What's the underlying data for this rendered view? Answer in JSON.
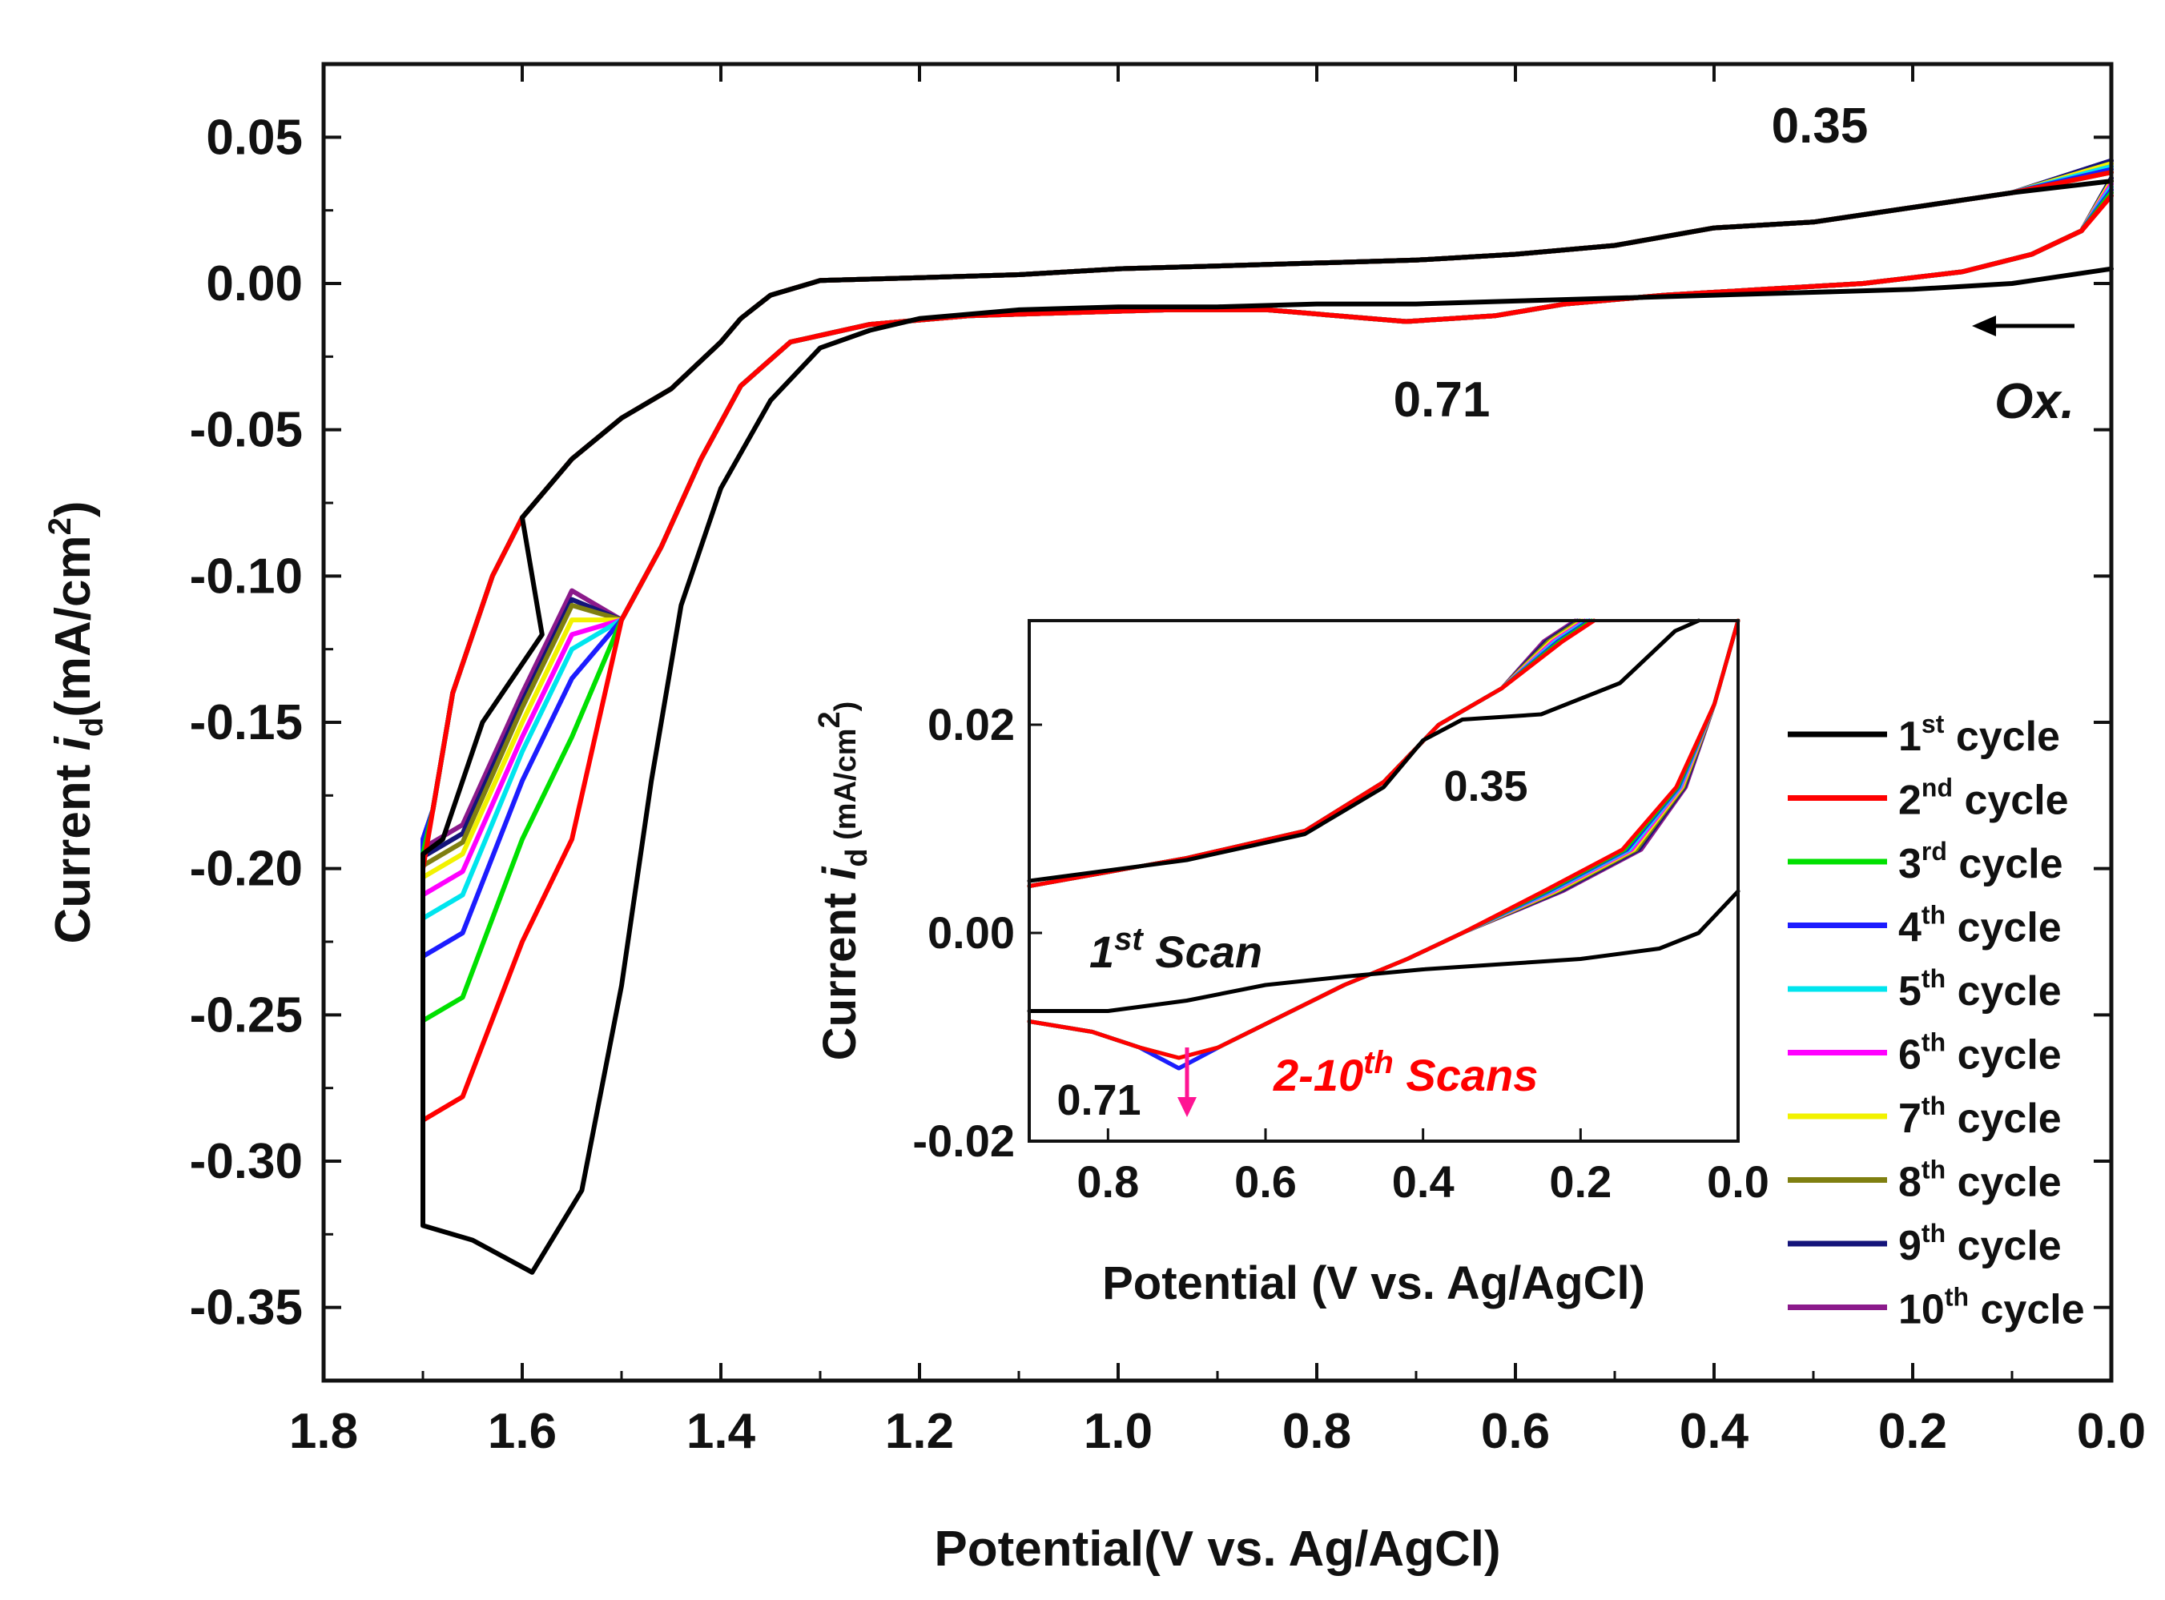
{
  "chart_data": {
    "type": "line",
    "main": {
      "xlabel": "Potential(V vs. Ag/AgCl)",
      "ylabel_prefix": "Current ",
      "ylabel_i": "i",
      "ylabel_sub": "d",
      "ylabel_unit": "(mA/cm",
      "ylabel_sup": "2",
      "ylabel_close": ")",
      "xlim": [
        1.8,
        0.0
      ],
      "ylim": [
        -0.375,
        0.075
      ],
      "xticks": [
        "1.8",
        "1.6",
        "1.4",
        "1.2",
        "1.0",
        "0.8",
        "0.6",
        "0.4",
        "0.2",
        "0.0"
      ],
      "yticks": [
        "0.05",
        "0.00",
        "-0.05",
        "-0.10",
        "-0.15",
        "-0.20",
        "-0.25",
        "-0.30",
        "-0.35"
      ],
      "annotations": {
        "peak_top": "0.35",
        "peak_bottom": "0.71",
        "scan_direction": "Ox."
      }
    },
    "inset": {
      "xlabel": "Potential (V vs. Ag/AgCl)",
      "ylabel_prefix": "Current ",
      "ylabel_i": "i",
      "ylabel_sub": "d",
      "ylabel_unit": " (mA/cm",
      "ylabel_sup": "2",
      "ylabel_close": ")",
      "xlim": [
        0.9,
        0.0
      ],
      "ylim": [
        -0.02,
        0.03
      ],
      "xticks": [
        "0.8",
        "0.6",
        "0.4",
        "0.2",
        "0.0"
      ],
      "yticks": [
        "0.02",
        "0.00",
        "-0.02"
      ],
      "annotations": {
        "peak_top": "0.35",
        "peak_bottom": "0.71",
        "first_scan": "1",
        "first_scan_sup": "st",
        "first_scan_tail": " Scan",
        "later_scans": "2-10",
        "later_scans_sup": "th",
        "later_scans_tail": " Scans"
      }
    },
    "series": [
      {
        "name": "1",
        "sup": "st",
        "tail": " cycle",
        "color": "#000000",
        "lower_min": -0.338,
        "lower_min_x": 1.59,
        "turn_low": -0.322,
        "turn_high": -0.195,
        "upper_mid": -0.175,
        "oxide": 0.0,
        "anodic_end": 0.035,
        "ox_end": 0.005
      },
      {
        "name": "2",
        "sup": "nd",
        "tail": " cycle",
        "color": "#ff0000",
        "lower_min": -0.286,
        "lower_min_x": 1.7,
        "turn_low": -0.286,
        "turn_high": -0.2,
        "upper_mid": -0.225,
        "oxide": -0.013,
        "anodic_end": 0.038,
        "ox_end": 0.03
      },
      {
        "name": "3",
        "sup": "rd",
        "tail": " cycle",
        "color": "#00e000",
        "lower_min": -0.252,
        "lower_min_x": 1.7,
        "turn_low": -0.252,
        "turn_high": -0.195,
        "upper_mid": -0.19,
        "oxide": -0.013,
        "anodic_end": 0.038,
        "ox_end": 0.031
      },
      {
        "name": "4",
        "sup": "th",
        "tail": " cycle",
        "color": "#1c1cff",
        "lower_min": -0.23,
        "lower_min_x": 1.7,
        "turn_low": -0.23,
        "turn_high": -0.19,
        "upper_mid": -0.17,
        "oxide": -0.013,
        "anodic_end": 0.039,
        "ox_end": 0.032
      },
      {
        "name": "5",
        "sup": "th",
        "tail": " cycle",
        "color": "#00e5ee",
        "lower_min": -0.217,
        "lower_min_x": 1.7,
        "turn_low": -0.217,
        "turn_high": -0.19,
        "upper_mid": -0.16,
        "oxide": -0.013,
        "anodic_end": 0.04,
        "ox_end": 0.033
      },
      {
        "name": "6",
        "sup": "th",
        "tail": " cycle",
        "color": "#ff00ff",
        "lower_min": -0.209,
        "lower_min_x": 1.7,
        "turn_low": -0.209,
        "turn_high": -0.19,
        "upper_mid": -0.155,
        "oxide": -0.013,
        "anodic_end": 0.04,
        "ox_end": 0.034
      },
      {
        "name": "7",
        "sup": "th",
        "tail": " cycle",
        "color": "#f2f200",
        "lower_min": -0.203,
        "lower_min_x": 1.7,
        "turn_low": -0.203,
        "turn_high": -0.19,
        "upper_mid": -0.15,
        "oxide": -0.013,
        "anodic_end": 0.041,
        "ox_end": 0.035
      },
      {
        "name": "8",
        "sup": "th",
        "tail": " cycle",
        "color": "#7f7f10",
        "lower_min": -0.199,
        "lower_min_x": 1.7,
        "turn_low": -0.199,
        "turn_high": -0.19,
        "upper_mid": -0.145,
        "oxide": -0.013,
        "anodic_end": 0.041,
        "ox_end": 0.035
      },
      {
        "name": "9",
        "sup": "th",
        "tail": " cycle",
        "color": "#14147a",
        "lower_min": -0.196,
        "lower_min_x": 1.7,
        "turn_low": -0.196,
        "turn_high": -0.19,
        "upper_mid": -0.143,
        "oxide": -0.013,
        "anodic_end": 0.042,
        "ox_end": 0.036
      },
      {
        "name": "10",
        "sup": "th",
        "tail": " cycle",
        "color": "#8b1a8b",
        "lower_min": -0.193,
        "lower_min_x": 1.7,
        "turn_low": -0.193,
        "turn_high": -0.19,
        "upper_mid": -0.14,
        "oxide": -0.013,
        "anodic_end": 0.042,
        "ox_end": 0.036
      }
    ]
  }
}
